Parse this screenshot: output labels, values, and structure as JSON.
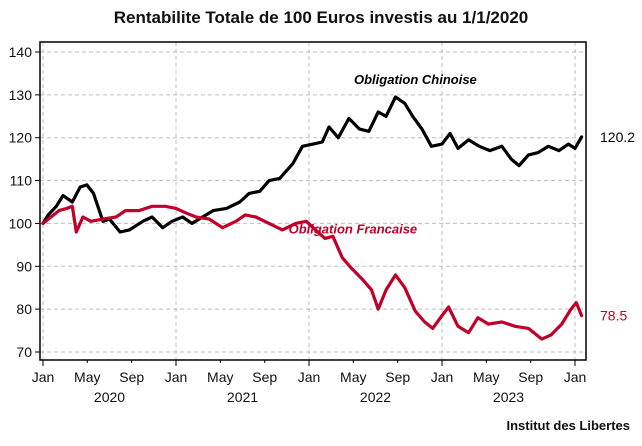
{
  "chart_data": {
    "type": "line",
    "title": "Rentabilite Totale de 100 Euros investis au 1/1/2020",
    "xlabel": "",
    "ylabel": "",
    "ylim": [
      70,
      140
    ],
    "xlim": [
      2020.0,
      2024.08
    ],
    "yticks": [
      70,
      80,
      90,
      100,
      110,
      120,
      130,
      140
    ],
    "ytick_labels": [
      "70",
      "80",
      "90",
      "100",
      "110",
      "120",
      "130",
      "140"
    ],
    "xticks": [
      {
        "x": 2020.0,
        "label": "Jan"
      },
      {
        "x": 2020.333,
        "label": "May"
      },
      {
        "x": 2020.667,
        "label": "Sep"
      },
      {
        "x": 2021.0,
        "label": "Jan"
      },
      {
        "x": 2021.333,
        "label": "May"
      },
      {
        "x": 2021.667,
        "label": "Sep"
      },
      {
        "x": 2022.0,
        "label": "Jan"
      },
      {
        "x": 2022.333,
        "label": "May"
      },
      {
        "x": 2022.667,
        "label": "Sep"
      },
      {
        "x": 2023.0,
        "label": "Jan"
      },
      {
        "x": 2023.333,
        "label": "May"
      },
      {
        "x": 2023.667,
        "label": "Sep"
      },
      {
        "x": 2024.0,
        "label": "Jan"
      }
    ],
    "year_labels": [
      {
        "x": 2020.5,
        "label": "2020"
      },
      {
        "x": 2021.5,
        "label": "2021"
      },
      {
        "x": 2022.5,
        "label": "2022"
      },
      {
        "x": 2023.5,
        "label": "2023"
      }
    ],
    "grid": true,
    "source": "Institut des Libertes",
    "series": [
      {
        "name": "Obligation Chinoise",
        "color": "#000000",
        "end_value_label": "120.2",
        "label_position": {
          "x": 2022.8,
          "y": 132.5
        },
        "x": [
          2020.0,
          2020.04,
          2020.1,
          2020.15,
          2020.22,
          2020.28,
          2020.33,
          2020.38,
          2020.45,
          2020.5,
          2020.58,
          2020.65,
          2020.75,
          2020.82,
          2020.9,
          2020.97,
          2021.05,
          2021.12,
          2021.2,
          2021.28,
          2021.38,
          2021.48,
          2021.55,
          2021.63,
          2021.7,
          2021.78,
          2021.88,
          2021.95,
          2022.03,
          2022.1,
          2022.15,
          2022.22,
          2022.3,
          2022.38,
          2022.45,
          2022.52,
          2022.58,
          2022.65,
          2022.72,
          2022.78,
          2022.85,
          2022.92,
          2023.0,
          2023.06,
          2023.12,
          2023.2,
          2023.28,
          2023.36,
          2023.45,
          2023.52,
          2023.58,
          2023.65,
          2023.72,
          2023.8,
          2023.88,
          2023.95,
          2024.0,
          2024.05
        ],
        "values": [
          100,
          102,
          104,
          106.5,
          105,
          108.5,
          109,
          107,
          100.5,
          101,
          98,
          98.5,
          100.5,
          101.5,
          99,
          100.5,
          101.5,
          100,
          101.5,
          103,
          103.5,
          105,
          107,
          107.5,
          110,
          110.5,
          114,
          118,
          118.5,
          119,
          122.5,
          120,
          124.5,
          122,
          121.5,
          126,
          125,
          129.5,
          128,
          125,
          122,
          118,
          118.5,
          121,
          117.5,
          119.5,
          118,
          117,
          118,
          115,
          113.5,
          116,
          116.5,
          118,
          117,
          118.5,
          117.5,
          120.2
        ]
      },
      {
        "name": "Obligation Francaise",
        "color": "#c0002a",
        "end_value_label": "78.5",
        "label_position": {
          "x": 2022.33,
          "y": 97.7
        },
        "x": [
          2020.0,
          2020.06,
          2020.12,
          2020.18,
          2020.22,
          2020.25,
          2020.3,
          2020.36,
          2020.45,
          2020.55,
          2020.62,
          2020.72,
          2020.82,
          2020.92,
          2021.0,
          2021.07,
          2021.15,
          2021.25,
          2021.35,
          2021.45,
          2021.52,
          2021.6,
          2021.7,
          2021.8,
          2021.9,
          2021.98,
          2022.05,
          2022.12,
          2022.18,
          2022.25,
          2022.32,
          2022.4,
          2022.47,
          2022.52,
          2022.58,
          2022.65,
          2022.72,
          2022.8,
          2022.87,
          2022.93,
          2023.0,
          2023.05,
          2023.12,
          2023.2,
          2023.27,
          2023.35,
          2023.45,
          2023.55,
          2023.65,
          2023.75,
          2023.82,
          2023.9,
          2023.97,
          2024.01,
          2024.05
        ],
        "values": [
          100,
          101.5,
          103,
          103.5,
          104,
          98,
          101.5,
          100.5,
          101,
          101.5,
          103,
          103,
          104,
          104,
          103.5,
          102.5,
          101.5,
          101,
          99,
          100.5,
          102,
          101.5,
          100,
          98.5,
          100,
          100.5,
          98.5,
          96.5,
          97,
          92,
          89.5,
          87,
          84.5,
          80,
          84.5,
          88,
          85,
          79.5,
          77,
          75.5,
          78.5,
          80.5,
          76,
          74.5,
          78,
          76.5,
          77,
          76,
          75.5,
          73,
          74,
          76.5,
          80,
          81.5,
          78.5
        ]
      }
    ]
  }
}
